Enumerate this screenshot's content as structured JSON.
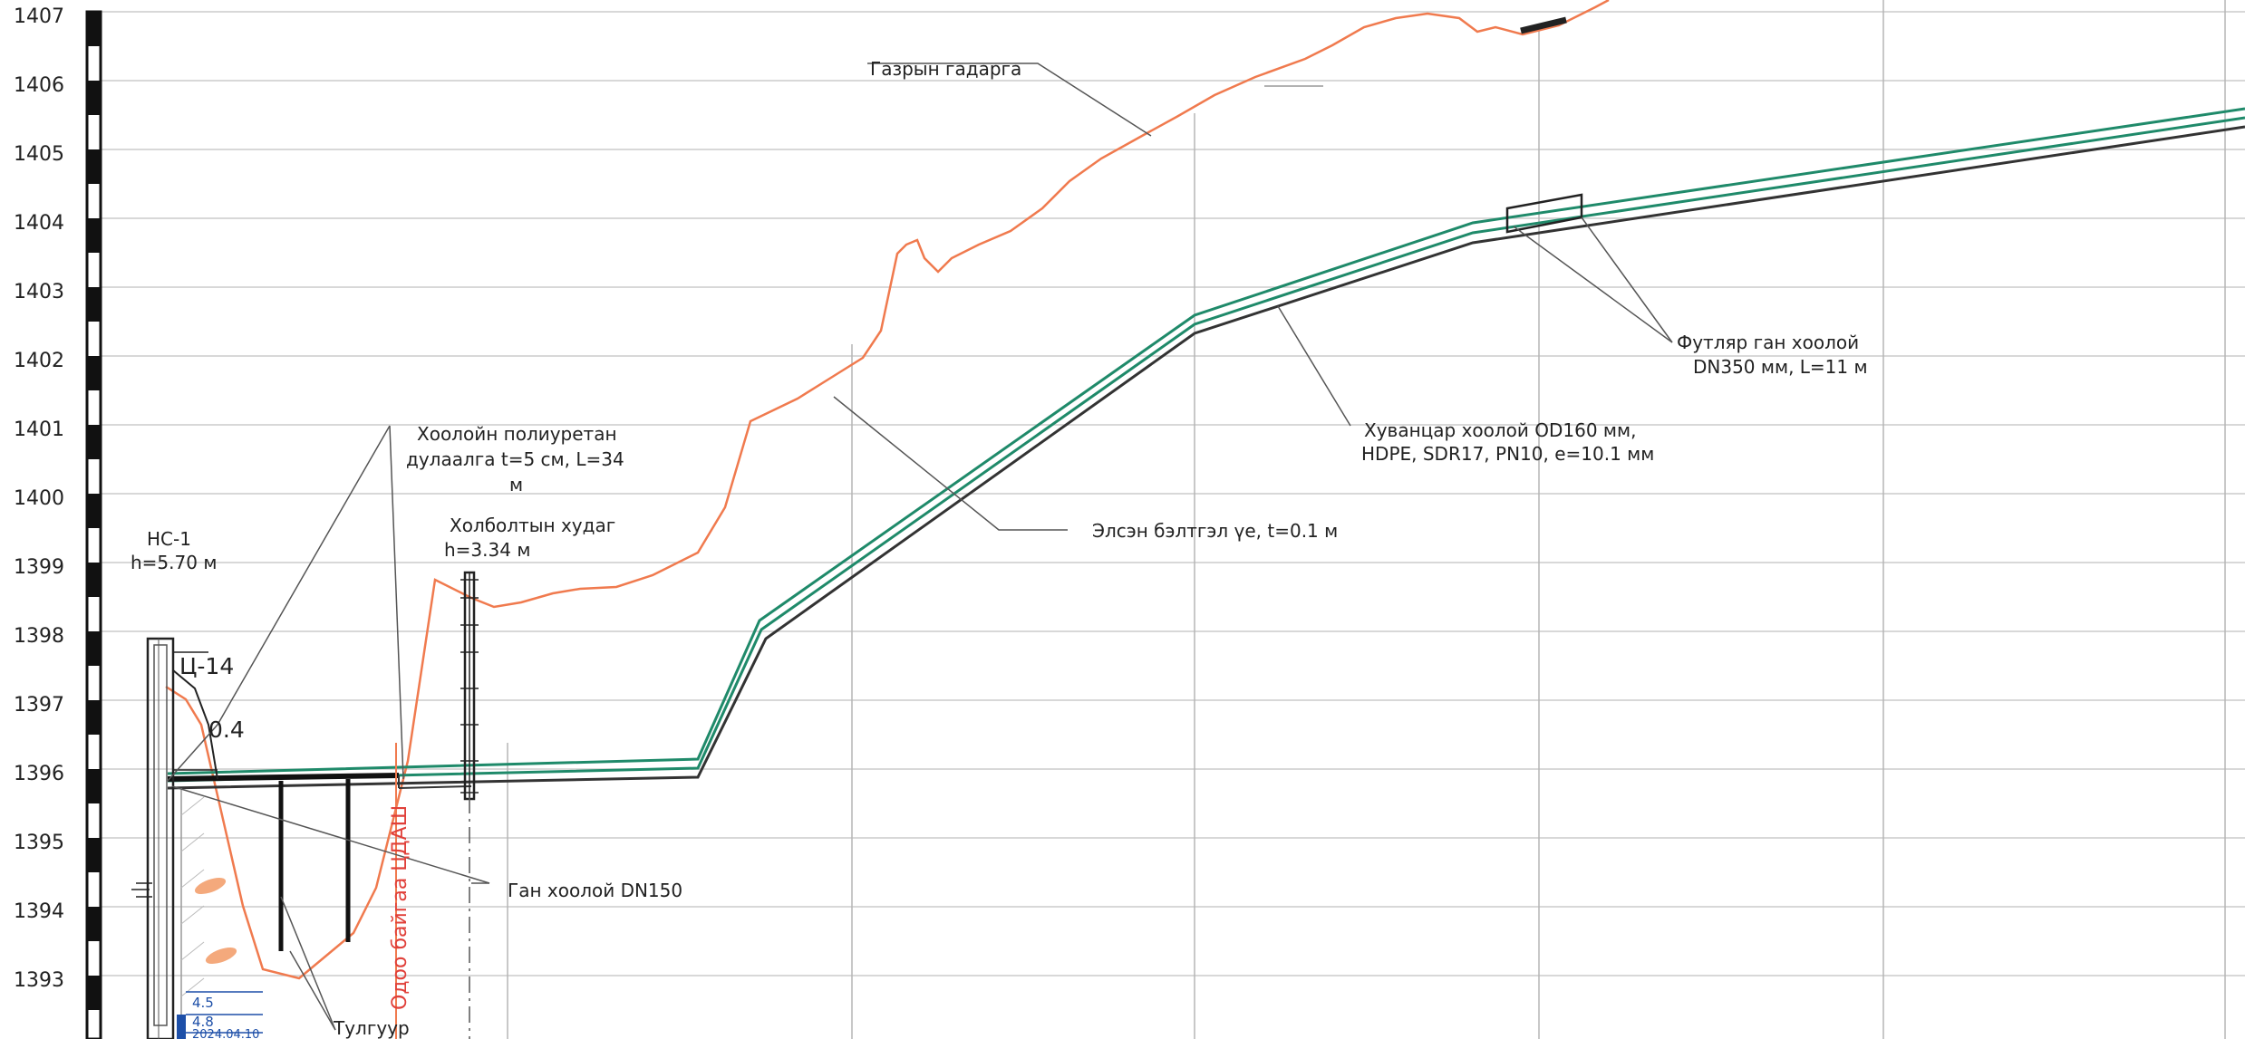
{
  "elevation_axis": {
    "labels": [
      "1407",
      "1406",
      "1405",
      "1404",
      "1403",
      "1402",
      "1401",
      "1400",
      "1399",
      "1398",
      "1397",
      "1396",
      "1395",
      "1394",
      "1393"
    ]
  },
  "labels": {
    "ground_surface": "Газрын гадарга",
    "insulation_line1": "Хоолойн полиуретан",
    "insulation_line2": "дулаалга t=5 см, L=34",
    "insulation_line3": "м",
    "manhole_line1": "Холболтын худаг",
    "manhole_line2": "h=3.34 м",
    "station_line1": "НС-1",
    "station_line2": "h=5.70 м",
    "station_tag": "Ц-14",
    "depth_value": "0.4",
    "steel_pipe": "Ган хоолой DN150",
    "sand_bedding": "Элсэн бэлтгэл үе, t=0.1 м",
    "hdpe_line1": "Хуванцар хоолой OD160 мм,",
    "hdpe_line2": "HDPE, SDR17, PN10, e=10.1 мм",
    "casing_line1": "Футляр ган хоолой",
    "casing_line2": "DN350 мм, L=11 м",
    "support": "Тулгуур",
    "existing_fence": "Одоо байгаа ЦДАШ",
    "well_value_1": "4.5",
    "well_value_2": "4.8",
    "well_date": "2024.04.10"
  },
  "colors": {
    "ground": "#f07a4e",
    "pipe": "#1f8a6a",
    "bedding": "#333333",
    "grid": "#cccccc",
    "fence_text": "#e0403a",
    "well_blue": "#1d4fa8",
    "well_fill": "#f4a97c"
  }
}
